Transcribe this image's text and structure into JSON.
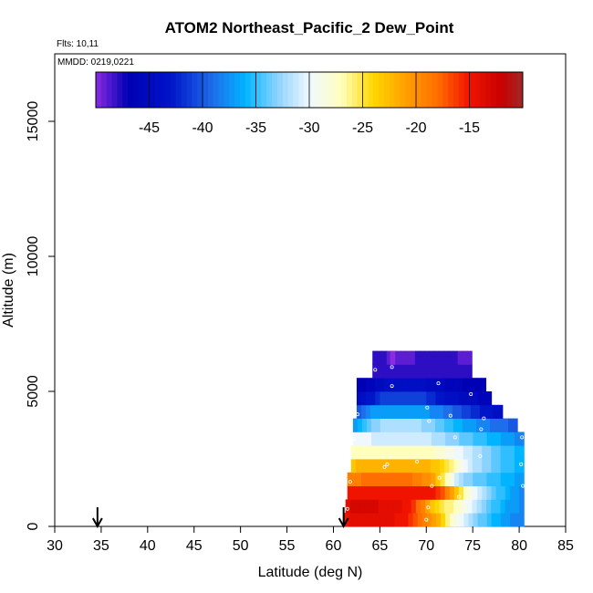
{
  "chart_data": {
    "type": "heatmap",
    "title": "ATOM2 Northeast_Pacific_2 Dew_Point",
    "subtitle_flights": "Flts: 10,11",
    "subtitle_dates": "MMDD: 0219,0221",
    "xlabel": "Latitude (deg N)",
    "ylabel": "Altitude (m)",
    "xlim": [
      30,
      85
    ],
    "ylim": [
      0,
      17500
    ],
    "x_ticks": [
      "30",
      "35",
      "40",
      "45",
      "50",
      "55",
      "60",
      "65",
      "70",
      "75",
      "80",
      "85"
    ],
    "y_ticks": [
      "0",
      "5000",
      "10000",
      "15000"
    ],
    "colorbar": {
      "range": [
        -50,
        -10
      ],
      "tick_values": [
        -45,
        -40,
        -35,
        -30,
        -25,
        -20,
        -15
      ],
      "tick_labels": [
        "-45",
        "-40",
        "-35",
        "-30",
        "-25",
        "-20",
        "-15"
      ]
    },
    "arrows_latitude": [
      34.6,
      61.1
    ],
    "bin_size": {
      "lat": 0.5,
      "alt_m": 500
    },
    "layers": [
      {
        "alt_m": 0,
        "lat": [
          61.1,
          80.5
        ],
        "values": [
          -15,
          -14,
          -14,
          -14,
          -14,
          -14,
          -14,
          -14,
          -14,
          -14,
          -14,
          -15,
          -15,
          -15,
          -16,
          -17,
          -18,
          -19,
          -20,
          -21,
          -22,
          -24,
          -26,
          -28,
          -29,
          -30,
          -31,
          -32,
          -33,
          -34,
          -34,
          -35,
          -36,
          -36,
          -37,
          -37,
          -38,
          -38,
          -38
        ]
      },
      {
        "alt_m": 500,
        "lat": [
          61.3,
          80.5
        ],
        "values": [
          -14,
          -13,
          -13,
          -13,
          -13,
          -13,
          -13,
          -14,
          -14,
          -14,
          -14,
          -14,
          -15,
          -15,
          -16,
          -18,
          -19,
          -21,
          -23,
          -24,
          -25,
          -26,
          -26,
          -27,
          -28,
          -29,
          -30,
          -31,
          -32,
          -33,
          -34,
          -35,
          -35,
          -36,
          -37,
          -37,
          -37,
          -38
        ]
      },
      {
        "alt_m": 1000,
        "lat": [
          61.5,
          80.5
        ],
        "values": [
          -15,
          -15,
          -15,
          -15,
          -15,
          -15,
          -15,
          -15,
          -15,
          -15,
          -15,
          -15,
          -15,
          -15,
          -15,
          -15,
          -15,
          -15,
          -15,
          -16,
          -17,
          -19,
          -21,
          -23,
          -25,
          -27,
          -29,
          -30,
          -31,
          -32,
          -33,
          -34,
          -35,
          -35,
          -36,
          -37,
          -37,
          -38
        ]
      },
      {
        "alt_m": 1500,
        "lat": [
          61.5,
          80.5
        ],
        "values": [
          -19,
          -19,
          -19,
          -18,
          -18,
          -18,
          -18,
          -18,
          -18,
          -18,
          -18,
          -18,
          -18,
          -18,
          -19,
          -19,
          -20,
          -20,
          -21,
          -23,
          -25,
          -27,
          -29,
          -31,
          -32,
          -33,
          -33,
          -34,
          -34,
          -34,
          -35,
          -35,
          -35,
          -36,
          -36,
          -36,
          -37,
          -37
        ]
      },
      {
        "alt_m": 2000,
        "lat": [
          61.9,
          80.5
        ],
        "values": [
          -23,
          -22,
          -22,
          -22,
          -22,
          -22,
          -22,
          -22,
          -22,
          -22,
          -22,
          -22,
          -22,
          -22,
          -22,
          -22,
          -22,
          -23,
          -23,
          -24,
          -25,
          -26,
          -27,
          -29,
          -30,
          -31,
          -32,
          -32,
          -33,
          -33,
          -34,
          -34,
          -35,
          -35,
          -35,
          -36,
          -36
        ]
      },
      {
        "alt_m": 2500,
        "lat": [
          61.9,
          80.5
        ],
        "values": [
          -27,
          -27,
          -27,
          -27,
          -27,
          -27,
          -27,
          -27,
          -27,
          -27,
          -27,
          -27,
          -27,
          -27,
          -27,
          -27,
          -27,
          -27,
          -28,
          -28,
          -29,
          -29,
          -30,
          -30,
          -31,
          -31,
          -32,
          -32,
          -33,
          -33,
          -34,
          -34,
          -35,
          -35,
          -35,
          -36,
          -36
        ]
      },
      {
        "alt_m": 3000,
        "lat": [
          62.1,
          80.5
        ],
        "values": [
          -30,
          -30,
          -30,
          -30,
          -31,
          -31,
          -31,
          -31,
          -31,
          -31,
          -31,
          -31,
          -31,
          -31,
          -31,
          -31,
          -31,
          -32,
          -32,
          -32,
          -33,
          -33,
          -33,
          -34,
          -34,
          -34,
          -35,
          -35,
          -35,
          -36,
          -36,
          -36,
          -37,
          -37,
          -37,
          -38,
          -38
        ]
      },
      {
        "alt_m": 3500,
        "lat": [
          62.1,
          79.8
        ],
        "values": [
          -37,
          -36,
          -35,
          -34,
          -33,
          -33,
          -32,
          -32,
          -32,
          -32,
          -32,
          -32,
          -32,
          -32,
          -32,
          -33,
          -33,
          -33,
          -34,
          -34,
          -35,
          -35,
          -36,
          -36,
          -37,
          -37,
          -37,
          -38,
          -38,
          -38,
          -39,
          -39,
          -39,
          -39,
          -40,
          -40
        ]
      },
      {
        "alt_m": 4000,
        "lat": [
          62.5,
          78.2
        ],
        "values": [
          -40,
          -39,
          -38,
          -37,
          -37,
          -37,
          -37,
          -37,
          -37,
          -37,
          -37,
          -37,
          -37,
          -37,
          -37,
          -37,
          -38,
          -38,
          -38,
          -39,
          -39,
          -40,
          -40,
          -41,
          -41,
          -42,
          -42,
          -43,
          -43,
          -43,
          -44,
          -44
        ]
      },
      {
        "alt_m": 4500,
        "lat": [
          62.5,
          77.0
        ],
        "values": [
          -45,
          -44,
          -43,
          -43,
          -42,
          -41,
          -41,
          -41,
          -41,
          -41,
          -41,
          -41,
          -41,
          -41,
          -41,
          -42,
          -42,
          -43,
          -43,
          -44,
          -44,
          -44,
          -45,
          -45,
          -45,
          -45,
          -46,
          -46,
          -46
        ]
      },
      {
        "alt_m": 5000,
        "lat": [
          62.5,
          76.4
        ],
        "values": [
          -47,
          -47,
          -46,
          -46,
          -45,
          -45,
          -44,
          -44,
          -44,
          -44,
          -44,
          -44,
          -44,
          -44,
          -44,
          -45,
          -45,
          -45,
          -45,
          -46,
          -46,
          -46,
          -46,
          -47,
          -47,
          -47,
          -47,
          -47
        ]
      },
      {
        "alt_m": 5500,
        "lat": [
          64.2,
          74.9
        ],
        "values": [
          -48,
          -48,
          -48,
          -48,
          -48,
          -48,
          -48,
          -48,
          -48,
          -48,
          -48,
          -48,
          -48,
          -48,
          -48,
          -48,
          -48,
          -48,
          -48,
          -48,
          -48
        ]
      },
      {
        "alt_m": 6000,
        "lat": [
          64.2,
          74.9
        ],
        "values": [
          -48,
          -48,
          -48,
          -49,
          -49,
          -49,
          -49,
          -49,
          -49,
          -48,
          -48,
          -48,
          -48,
          -48,
          -48,
          -48,
          -48,
          -48,
          -49,
          -49,
          -49
        ]
      },
      {
        "alt_m": 6000,
        "lat": [
          66.1,
          66.6
        ],
        "values": [
          -50
        ]
      }
    ],
    "observations": [
      {
        "lat": 61.5,
        "alt_m": 650
      },
      {
        "lat": 61.8,
        "alt_m": 1650
      },
      {
        "lat": 62.2,
        "alt_m": 3250
      },
      {
        "lat": 62.6,
        "alt_m": 4150
      },
      {
        "lat": 64.5,
        "alt_m": 5800
      },
      {
        "lat": 65.5,
        "alt_m": 2200
      },
      {
        "lat": 65.8,
        "alt_m": 2300
      },
      {
        "lat": 66.3,
        "alt_m": 5900
      },
      {
        "lat": 66.3,
        "alt_m": 5200
      },
      {
        "lat": 69.0,
        "alt_m": 2400
      },
      {
        "lat": 70.1,
        "alt_m": 4400
      },
      {
        "lat": 70.3,
        "alt_m": 3900
      },
      {
        "lat": 70.2,
        "alt_m": 700
      },
      {
        "lat": 70.6,
        "alt_m": 1500
      },
      {
        "lat": 71.3,
        "alt_m": 5300
      },
      {
        "lat": 71.4,
        "alt_m": 1800
      },
      {
        "lat": 72.6,
        "alt_m": 4100
      },
      {
        "lat": 73.1,
        "alt_m": 3300
      },
      {
        "lat": 73.5,
        "alt_m": 1100
      },
      {
        "lat": 74.8,
        "alt_m": 4900
      },
      {
        "lat": 75.8,
        "alt_m": 2600
      },
      {
        "lat": 75.9,
        "alt_m": 3600
      },
      {
        "lat": 76.2,
        "alt_m": 4000
      },
      {
        "lat": 80.3,
        "alt_m": 3300
      },
      {
        "lat": 80.2,
        "alt_m": 2300
      },
      {
        "lat": 80.4,
        "alt_m": 1500
      },
      {
        "lat": 70.0,
        "alt_m": 250
      }
    ]
  }
}
